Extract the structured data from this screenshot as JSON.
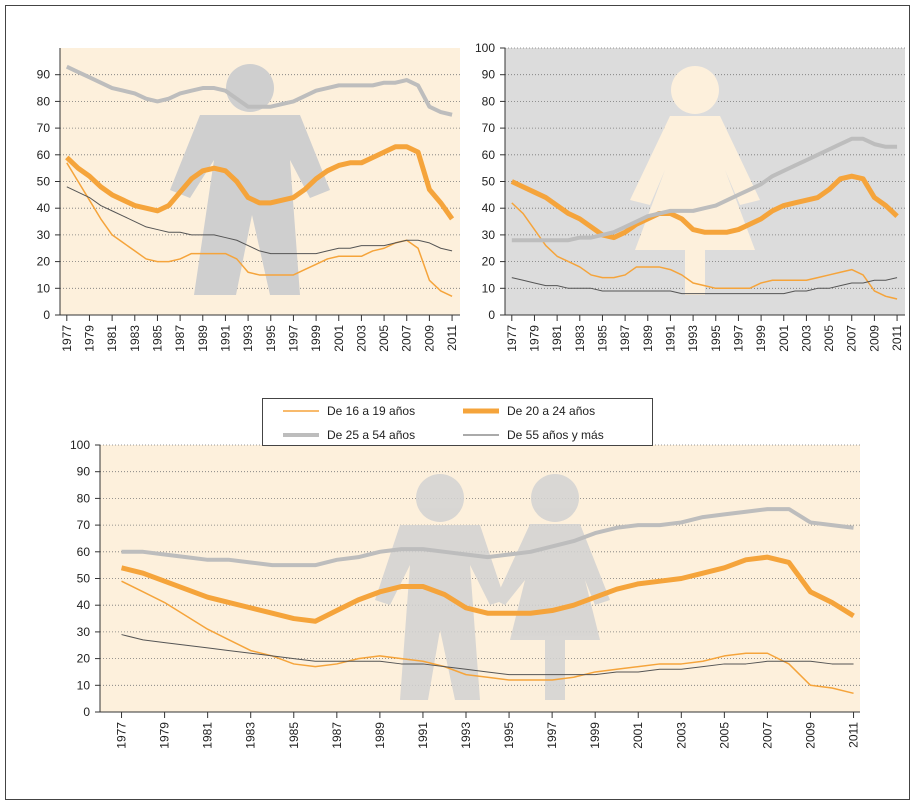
{
  "chart_data": [
    {
      "type": "line",
      "background": "#fdf0dc",
      "x": [
        1977,
        1978,
        1979,
        1980,
        1981,
        1982,
        1983,
        1984,
        1985,
        1986,
        1987,
        1988,
        1989,
        1990,
        1991,
        1992,
        1993,
        1994,
        1995,
        1996,
        1997,
        1998,
        1999,
        2000,
        2001,
        2002,
        2003,
        2004,
        2005,
        2006,
        2007,
        2008,
        2009,
        2010,
        2011
      ],
      "xlim": [
        1976.4,
        2011.7
      ],
      "xticks": [
        1977,
        1979,
        1981,
        1983,
        1985,
        1987,
        1989,
        1991,
        1993,
        1995,
        1997,
        1999,
        2001,
        2003,
        2005,
        2007,
        2009,
        2011
      ],
      "ylim": [
        0,
        100
      ],
      "yticks": [
        0,
        10,
        20,
        30,
        40,
        50,
        60,
        70,
        80,
        90
      ],
      "grid": true,
      "series": [
        {
          "color": "#f5a43b",
          "linewidth": 1.5,
          "values": [
            57,
            50,
            43,
            36,
            30,
            27,
            24,
            21,
            20,
            20,
            21,
            23,
            23,
            23,
            23,
            21,
            16,
            15,
            15,
            15,
            15,
            17,
            19,
            21,
            22,
            22,
            22,
            24,
            25,
            27,
            28,
            25,
            13,
            9,
            7
          ]
        },
        {
          "color": "#f5a43b",
          "linewidth": 5,
          "values": [
            59,
            55,
            52,
            48,
            45,
            43,
            41,
            40,
            39,
            41,
            46,
            51,
            54,
            55,
            54,
            50,
            44,
            42,
            42,
            43,
            44,
            47,
            51,
            54,
            56,
            57,
            57,
            59,
            61,
            63,
            63,
            61,
            47,
            42,
            36
          ]
        },
        {
          "color": "#bdbdbd",
          "linewidth": 4,
          "values": [
            93,
            91,
            89,
            87,
            85,
            84,
            83,
            81,
            80,
            81,
            83,
            84,
            85,
            85,
            84,
            81,
            78,
            78,
            78,
            79,
            80,
            82,
            84,
            85,
            86,
            86,
            86,
            86,
            87,
            87,
            88,
            86,
            78,
            76,
            75
          ]
        },
        {
          "color": "#555555",
          "linewidth": 1,
          "values": [
            48,
            46,
            44,
            41,
            39,
            37,
            35,
            33,
            32,
            31,
            31,
            30,
            30,
            30,
            29,
            28,
            26,
            24,
            23,
            23,
            23,
            23,
            23,
            24,
            25,
            25,
            26,
            26,
            26,
            27,
            28,
            28,
            27,
            25,
            24
          ]
        }
      ]
    },
    {
      "type": "line",
      "background": "#dcdcdc",
      "x": [
        1977,
        1978,
        1979,
        1980,
        1981,
        1982,
        1983,
        1984,
        1985,
        1986,
        1987,
        1988,
        1989,
        1990,
        1991,
        1992,
        1993,
        1994,
        1995,
        1996,
        1997,
        1998,
        1999,
        2000,
        2001,
        2002,
        2003,
        2004,
        2005,
        2006,
        2007,
        2008,
        2009,
        2010,
        2011
      ],
      "xlim": [
        1976.4,
        2011.7
      ],
      "xticks": [
        1977,
        1979,
        1981,
        1983,
        1985,
        1987,
        1989,
        1991,
        1993,
        1995,
        1997,
        1999,
        2001,
        2003,
        2005,
        2007,
        2009,
        2011
      ],
      "ylim": [
        0,
        100
      ],
      "yticks": [
        0,
        10,
        20,
        30,
        40,
        50,
        60,
        70,
        80,
        90,
        100
      ],
      "grid": true,
      "series": [
        {
          "color": "#f5a43b",
          "linewidth": 1.5,
          "values": [
            42,
            38,
            32,
            26,
            22,
            20,
            18,
            15,
            14,
            14,
            15,
            18,
            18,
            18,
            17,
            15,
            12,
            11,
            10,
            10,
            10,
            10,
            12,
            13,
            13,
            13,
            13,
            14,
            15,
            16,
            17,
            15,
            9,
            7,
            6
          ]
        },
        {
          "color": "#f5a43b",
          "linewidth": 5,
          "values": [
            50,
            48,
            46,
            44,
            41,
            38,
            36,
            33,
            30,
            29,
            31,
            34,
            36,
            38,
            38,
            36,
            32,
            31,
            31,
            31,
            32,
            34,
            36,
            39,
            41,
            42,
            43,
            44,
            47,
            51,
            52,
            51,
            44,
            41,
            37
          ]
        },
        {
          "color": "#bdbdbd",
          "linewidth": 4,
          "values": [
            28,
            28,
            28,
            28,
            28,
            28,
            29,
            29,
            30,
            31,
            33,
            35,
            37,
            38,
            39,
            39,
            39,
            40,
            41,
            43,
            45,
            47,
            49,
            52,
            54,
            56,
            58,
            60,
            62,
            64,
            66,
            66,
            64,
            63,
            63
          ]
        },
        {
          "color": "#555555",
          "linewidth": 1,
          "values": [
            14,
            13,
            12,
            11,
            11,
            10,
            10,
            10,
            9,
            9,
            9,
            9,
            9,
            9,
            9,
            8,
            8,
            8,
            8,
            8,
            8,
            8,
            8,
            8,
            8,
            9,
            9,
            10,
            10,
            11,
            12,
            12,
            13,
            13,
            14
          ]
        }
      ]
    },
    {
      "type": "line",
      "background": "#fdf0dc",
      "x": [
        1977,
        1978,
        1979,
        1980,
        1981,
        1982,
        1983,
        1984,
        1985,
        1986,
        1987,
        1988,
        1989,
        1990,
        1991,
        1992,
        1993,
        1994,
        1995,
        1996,
        1997,
        1998,
        1999,
        2000,
        2001,
        2002,
        2003,
        2004,
        2005,
        2006,
        2007,
        2008,
        2009,
        2010,
        2011
      ],
      "xlim": [
        1976,
        2011.3
      ],
      "xticks": [
        1977,
        1979,
        1981,
        1983,
        1985,
        1987,
        1989,
        1991,
        1993,
        1995,
        1997,
        1999,
        2001,
        2003,
        2005,
        2007,
        2009,
        2011
      ],
      "ylim": [
        0,
        100
      ],
      "yticks": [
        0,
        10,
        20,
        30,
        40,
        50,
        60,
        70,
        80,
        90,
        100
      ],
      "grid": true,
      "series": [
        {
          "name": "De 16 a 19 años",
          "color": "#f5a43b",
          "linewidth": 1.5,
          "values": [
            49,
            45,
            41,
            36,
            31,
            27,
            23,
            21,
            18,
            17,
            18,
            20,
            21,
            20,
            19,
            17,
            14,
            13,
            12,
            12,
            12,
            13,
            15,
            16,
            17,
            18,
            18,
            19,
            21,
            22,
            22,
            18,
            10,
            9,
            7
          ]
        },
        {
          "name": "De 20 a 24 años",
          "color": "#f5a43b",
          "linewidth": 5,
          "values": [
            54,
            52,
            49,
            46,
            43,
            41,
            39,
            37,
            35,
            34,
            38,
            42,
            45,
            47,
            47,
            44,
            39,
            37,
            37,
            37,
            38,
            40,
            43,
            46,
            48,
            49,
            50,
            52,
            54,
            57,
            58,
            56,
            45,
            41,
            36
          ]
        },
        {
          "name": "De 25 a 54 años",
          "color": "#bdbdbd",
          "linewidth": 4,
          "values": [
            60,
            60,
            59,
            58,
            57,
            57,
            56,
            55,
            55,
            55,
            57,
            58,
            60,
            61,
            61,
            60,
            59,
            58,
            59,
            60,
            62,
            64,
            67,
            69,
            70,
            70,
            71,
            73,
            74,
            75,
            76,
            76,
            71,
            70,
            69
          ]
        },
        {
          "name": "De 55 años y más",
          "color": "#555555",
          "linewidth": 1,
          "values": [
            29,
            27,
            26,
            25,
            24,
            23,
            22,
            21,
            20,
            19,
            19,
            19,
            19,
            18,
            18,
            17,
            16,
            15,
            14,
            14,
            14,
            14,
            14,
            15,
            15,
            16,
            16,
            17,
            18,
            18,
            19,
            19,
            19,
            18,
            18
          ]
        }
      ]
    }
  ]
}
